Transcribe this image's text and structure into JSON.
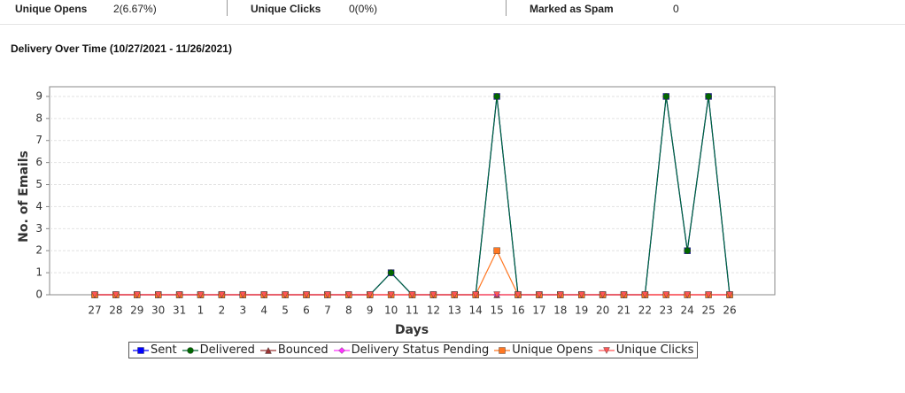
{
  "stats": [
    {
      "label": "Unique Opens",
      "value": "2(6.67%)"
    },
    {
      "label": "Unique Clicks",
      "value": "0(0%)"
    },
    {
      "label": "Marked as Spam",
      "value": "0"
    }
  ],
  "section_title": "Delivery Over Time (10/27/2021 - 11/26/2021)",
  "chart_data": {
    "type": "line",
    "x_label": "Days",
    "y_label": "No. of Emails",
    "categories": [
      "27",
      "28",
      "29",
      "30",
      "31",
      "1",
      "2",
      "3",
      "4",
      "5",
      "6",
      "7",
      "8",
      "9",
      "10",
      "11",
      "12",
      "13",
      "14",
      "15",
      "16",
      "17",
      "18",
      "19",
      "20",
      "21",
      "22",
      "23",
      "24",
      "25",
      "26"
    ],
    "ylim": [
      0,
      9.44
    ],
    "yticks": [
      0,
      1,
      2,
      3,
      4,
      5,
      6,
      7,
      8,
      9
    ],
    "grid": true,
    "legend": "bottom",
    "series": [
      {
        "name": "Sent",
        "color": "#0000ff",
        "line_color": "#0000ff",
        "marker": "square",
        "values": [
          0,
          0,
          0,
          0,
          0,
          0,
          0,
          0,
          0,
          0,
          0,
          0,
          0,
          0,
          1,
          0,
          0,
          0,
          0,
          9,
          0,
          0,
          0,
          0,
          0,
          0,
          0,
          9,
          2,
          9,
          0
        ]
      },
      {
        "name": "Delivered",
        "color": "#006600",
        "line_color": "#006633",
        "marker": "circle",
        "values": [
          0,
          0,
          0,
          0,
          0,
          0,
          0,
          0,
          0,
          0,
          0,
          0,
          0,
          0,
          1,
          0,
          0,
          0,
          0,
          9,
          0,
          0,
          0,
          0,
          0,
          0,
          0,
          9,
          2,
          9,
          0
        ]
      },
      {
        "name": "Bounced",
        "color": "#993333",
        "line_color": "#993333",
        "marker": "triangle",
        "values": [
          0,
          0,
          0,
          0,
          0,
          0,
          0,
          0,
          0,
          0,
          0,
          0,
          0,
          0,
          0,
          0,
          0,
          0,
          0,
          0,
          0,
          0,
          0,
          0,
          0,
          0,
          0,
          0,
          0,
          0,
          0
        ]
      },
      {
        "name": "Delivery Status Pending",
        "color": "#ff33ff",
        "line_color": "#ff33ff",
        "marker": "diamond",
        "values": [
          0,
          0,
          0,
          0,
          0,
          0,
          0,
          0,
          0,
          0,
          0,
          0,
          0,
          0,
          0,
          0,
          0,
          0,
          0,
          0,
          0,
          0,
          0,
          0,
          0,
          0,
          0,
          0,
          0,
          0,
          0
        ]
      },
      {
        "name": "Unique Opens",
        "color": "#ff7722",
        "line_color": "#ff7722",
        "marker": "square",
        "values": [
          0,
          0,
          0,
          0,
          0,
          0,
          0,
          0,
          0,
          0,
          0,
          0,
          0,
          0,
          0,
          0,
          0,
          0,
          0,
          2,
          0,
          0,
          0,
          0,
          0,
          0,
          0,
          0,
          0,
          0,
          0
        ]
      },
      {
        "name": "Unique Clicks",
        "color": "#ff5555",
        "line_color": "#ff5555",
        "marker": "down-triangle",
        "values": [
          0,
          0,
          0,
          0,
          0,
          0,
          0,
          0,
          0,
          0,
          0,
          0,
          0,
          0,
          0,
          0,
          0,
          0,
          0,
          0,
          0,
          0,
          0,
          0,
          0,
          0,
          0,
          0,
          0,
          0,
          0
        ]
      }
    ]
  }
}
